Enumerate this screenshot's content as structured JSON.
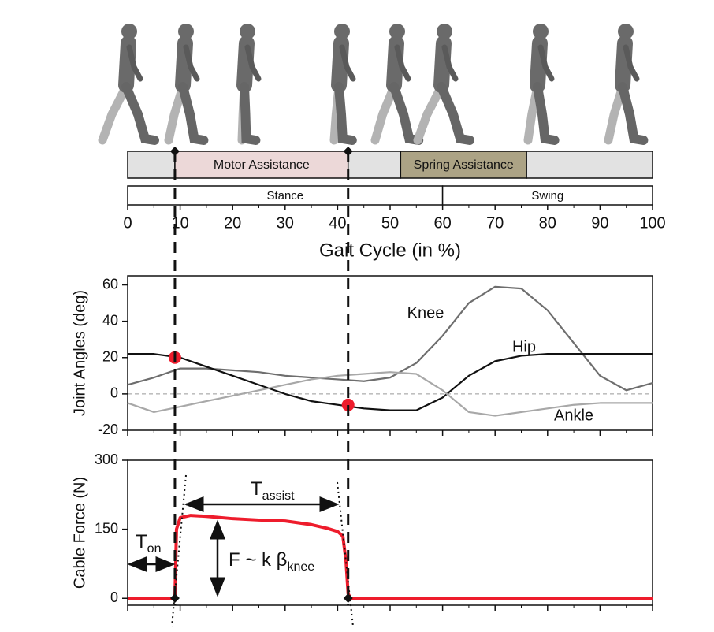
{
  "chart_data": [
    {
      "type": "gantt",
      "xlabel": "Gait Cycle (in %)",
      "xlim": [
        0,
        100
      ],
      "xticks": [
        0,
        10,
        20,
        30,
        40,
        50,
        60,
        70,
        80,
        90,
        100
      ],
      "events": [
        9,
        42
      ],
      "rows": [
        {
          "segments": [
            {
              "start": 0,
              "end": 9,
              "color": "#e2e2e2"
            },
            {
              "start": 9,
              "end": 42,
              "label": "Motor Assistance",
              "color": "#ecd8d8"
            },
            {
              "start": 42,
              "end": 52,
              "color": "#e2e2e2"
            },
            {
              "start": 52,
              "end": 76,
              "label": "Spring Assistance",
              "color": "#aca385"
            },
            {
              "start": 76,
              "end": 100,
              "color": "#e2e2e2"
            }
          ]
        },
        {
          "segments": [
            {
              "start": 0,
              "end": 60,
              "label": "Stance",
              "color": "#ffffff"
            },
            {
              "start": 60,
              "end": 100,
              "label": "Swing",
              "color": "#ffffff"
            }
          ]
        }
      ]
    },
    {
      "type": "line",
      "ylabel": "Joint Angles (deg)",
      "xlim": [
        0,
        100
      ],
      "ylim": [
        -20,
        65
      ],
      "yticks": [
        -20,
        0,
        20,
        40,
        60
      ],
      "reference_line": 0,
      "x": [
        0,
        5,
        10,
        15,
        20,
        25,
        30,
        35,
        40,
        45,
        50,
        55,
        60,
        65,
        70,
        75,
        80,
        85,
        90,
        95,
        100
      ],
      "series": [
        {
          "name": "Knee",
          "color": "#6e6e6e",
          "values": [
            5,
            9,
            14,
            14,
            13,
            12,
            10,
            9,
            8,
            7,
            9,
            17,
            32,
            50,
            59,
            58,
            46,
            28,
            10,
            2,
            6
          ]
        },
        {
          "name": "Hip",
          "color": "#111111",
          "values": [
            22,
            22,
            20,
            15,
            10,
            5,
            0,
            -4,
            -6,
            -8,
            -9,
            -9,
            -2,
            10,
            18,
            21,
            22,
            22,
            22,
            22,
            22
          ]
        },
        {
          "name": "Ankle",
          "color": "#a8a8a8",
          "values": [
            -5,
            -10,
            -7,
            -4,
            -1,
            2,
            5,
            8,
            10,
            11,
            12,
            11,
            2,
            -10,
            -12,
            -10,
            -8,
            -6,
            -5,
            -5,
            -5
          ]
        }
      ],
      "markers": {
        "color": "#ee1c2c",
        "x": [
          9,
          42
        ],
        "values": [
          20,
          -6
        ]
      }
    },
    {
      "type": "line",
      "ylabel": "Cable Force (N)",
      "xlim": [
        0,
        100
      ],
      "ylim": [
        -15,
        300
      ],
      "yticks": [
        0,
        150,
        300
      ],
      "x": [
        0,
        9,
        9.3,
        10,
        12,
        15,
        20,
        25,
        30,
        35,
        38,
        40,
        41,
        41.6,
        42,
        42.5,
        100
      ],
      "series": [
        {
          "color": "#ee1c2c",
          "values": [
            0,
            0,
            150,
            175,
            180,
            178,
            173,
            170,
            168,
            160,
            152,
            145,
            135,
            80,
            10,
            0,
            0
          ]
        }
      ],
      "annotations": {
        "t_on": [
          "T",
          "on"
        ],
        "t_assist": [
          "T",
          "assist"
        ],
        "force": [
          "F ~ k β",
          "knee"
        ]
      }
    }
  ]
}
